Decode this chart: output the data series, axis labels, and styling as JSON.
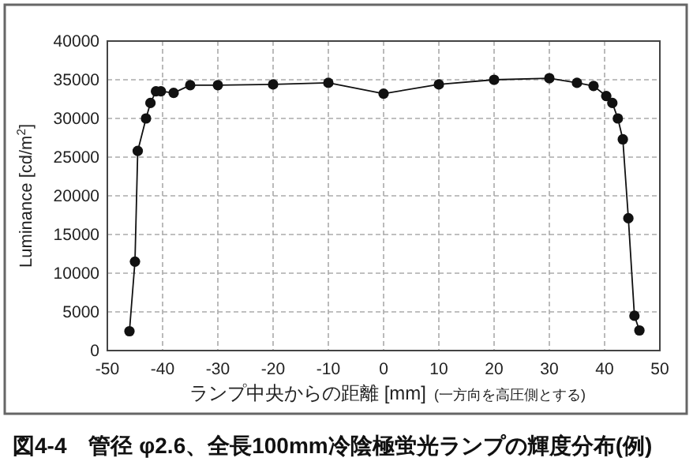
{
  "chart_data": {
    "type": "line",
    "xlabel": "ランプ中央からの距離 [mm]",
    "ylabel": "Luminance [cd/m$^{2}$]",
    "title": "図4-4　管径 φ2.6、全長100mm冷陰極蛍光ランプの輝度分布(例)",
    "annotations": [
      "(一方向を高圧側とする)"
    ],
    "xlim": [
      -50,
      50
    ],
    "xticks": [
      -50,
      -40,
      -30,
      -20,
      -10,
      0,
      10,
      20,
      30,
      40,
      50
    ],
    "ylim": [
      0,
      40000
    ],
    "yticks": [
      0,
      5000,
      10000,
      15000,
      20000,
      25000,
      30000,
      35000,
      40000
    ],
    "grid": true,
    "marker": "circle",
    "line_style": "solid",
    "series": [
      {
        "color": "#111111",
        "x": [
          -46,
          -45,
          -44.5,
          -43,
          -42.2,
          -41.2,
          -40.3,
          -38,
          -35,
          -30,
          -20,
          -10,
          0,
          10,
          20,
          30,
          35,
          38,
          40.3,
          41.4,
          42.4,
          43.3,
          44.3,
          45.4,
          46.3
        ],
        "values": [
          2500,
          11500,
          25800,
          30000,
          32000,
          33500,
          33500,
          33300,
          34300,
          34300,
          34400,
          34600,
          33200,
          34400,
          35000,
          35200,
          34600,
          34200,
          32900,
          32000,
          30000,
          27300,
          17100,
          4500,
          2600
        ]
      }
    ]
  }
}
